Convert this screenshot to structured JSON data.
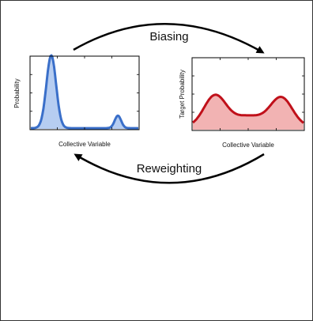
{
  "diagram": {
    "top_arrow_label": "Biasing",
    "bottom_arrow_label": "Reweighting"
  },
  "left_plot": {
    "ylabel": "Probability",
    "xlabel": "Collective Variable",
    "line_color": "#3a6fc9",
    "fill_color": "#b6cdf1"
  },
  "right_plot": {
    "ylabel": "Target Probability",
    "xlabel": "Collective Variable",
    "line_color": "#c0101a",
    "fill_color": "#f2b3b3"
  }
}
